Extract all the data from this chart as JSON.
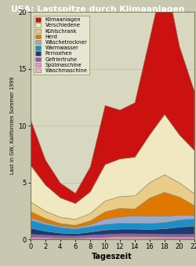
{
  "title": "USA: Lastspitze durch Klimaanlagen",
  "xlabel": "Tageszeit",
  "ylabel": "Last in GW, Kalifornien Sommer 1999",
  "title_bg": "#1a4080",
  "title_color": "#ffffff",
  "outer_bg": "#c8c8b0",
  "plot_bg": "#d8d8c0",
  "x": [
    0,
    2,
    4,
    6,
    8,
    10,
    12,
    14,
    16,
    18,
    20,
    22
  ],
  "ylim": [
    0,
    20
  ],
  "xlim": [
    0,
    22
  ],
  "xticks": [
    0,
    2,
    4,
    6,
    8,
    10,
    12,
    14,
    16,
    18,
    20,
    22
  ],
  "yticks": [
    0,
    5,
    10,
    15,
    20
  ],
  "layers": [
    {
      "label": "Waschmaschine",
      "color": "#ffaacc",
      "values": [
        0.1,
        0.1,
        0.08,
        0.08,
        0.1,
        0.12,
        0.15,
        0.15,
        0.12,
        0.1,
        0.1,
        0.1
      ]
    },
    {
      "label": "Spülmaschine",
      "color": "#dd99cc",
      "values": [
        0.12,
        0.1,
        0.08,
        0.08,
        0.1,
        0.12,
        0.15,
        0.15,
        0.15,
        0.15,
        0.15,
        0.15
      ]
    },
    {
      "label": "Gefriertruhe",
      "color": "#9955aa",
      "values": [
        0.25,
        0.2,
        0.18,
        0.15,
        0.2,
        0.22,
        0.22,
        0.22,
        0.22,
        0.22,
        0.22,
        0.22
      ]
    },
    {
      "label": "Fernsehen",
      "color": "#1a3a7a",
      "values": [
        0.55,
        0.35,
        0.25,
        0.22,
        0.28,
        0.4,
        0.42,
        0.42,
        0.42,
        0.5,
        0.65,
        0.72
      ]
    },
    {
      "label": "Warmwasser",
      "color": "#1a8fcc",
      "values": [
        0.7,
        0.6,
        0.5,
        0.42,
        0.48,
        0.5,
        0.52,
        0.52,
        0.52,
        0.55,
        0.62,
        0.65
      ]
    },
    {
      "label": "Wäschetrockner",
      "color": "#99aad0",
      "values": [
        0.22,
        0.15,
        0.12,
        0.12,
        0.18,
        0.45,
        0.55,
        0.65,
        0.65,
        0.55,
        0.42,
        0.32
      ]
    },
    {
      "label": "Herd",
      "color": "#e07800",
      "values": [
        0.55,
        0.35,
        0.22,
        0.2,
        0.32,
        0.65,
        0.75,
        0.6,
        1.6,
        2.1,
        1.6,
        0.85
      ]
    },
    {
      "label": "Kühlschrank",
      "color": "#e8cc88",
      "values": [
        0.85,
        0.65,
        0.55,
        0.52,
        0.65,
        0.95,
        1.05,
        1.15,
        1.35,
        1.55,
        1.25,
        1.05
      ]
    },
    {
      "label": "Verschiedene",
      "color": "#f0e8c0",
      "values": [
        3.2,
        2.3,
        1.7,
        1.4,
        1.9,
        3.2,
        3.3,
        3.4,
        4.2,
        5.3,
        4.2,
        3.8
      ]
    },
    {
      "label": "Klimaanlagen",
      "color": "#cc1111",
      "values": [
        4.0,
        2.2,
        1.3,
        0.9,
        2.2,
        5.2,
        4.3,
        4.8,
        8.5,
        12.5,
        7.8,
        5.2
      ]
    }
  ]
}
